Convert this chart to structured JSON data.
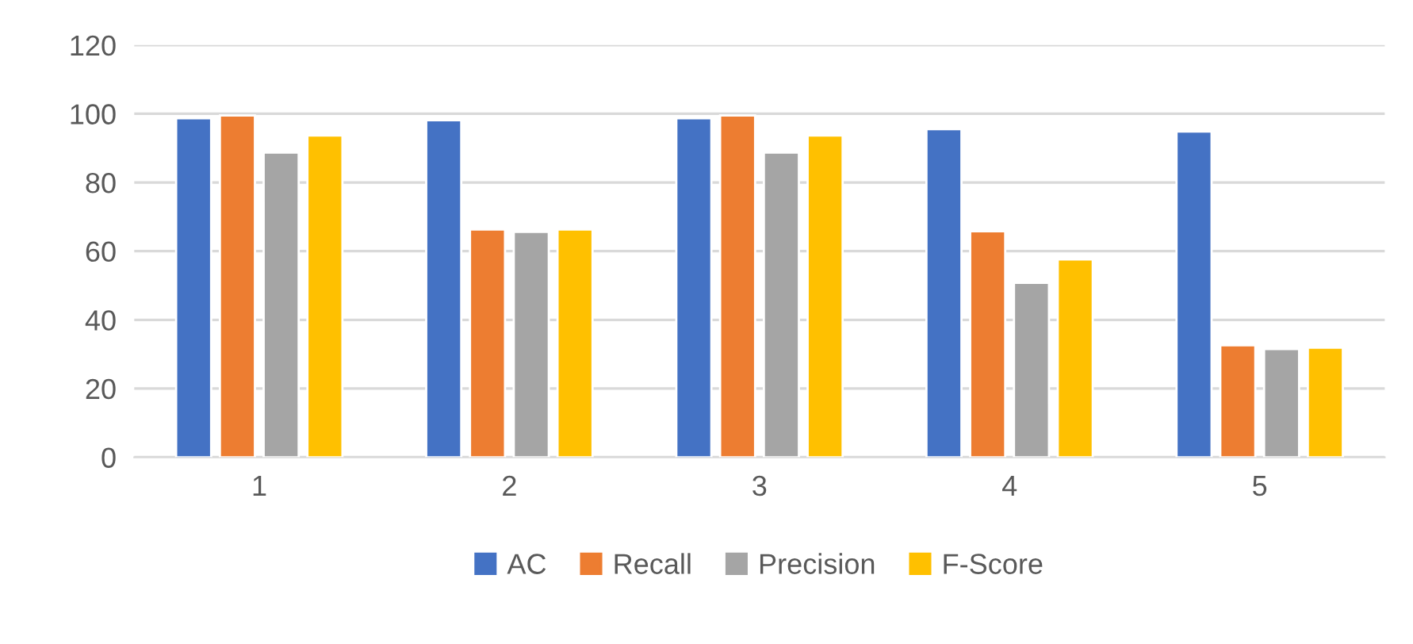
{
  "chart_data": {
    "type": "bar",
    "categories": [
      "1",
      "2",
      "3",
      "4",
      "5"
    ],
    "series": [
      {
        "name": "AC",
        "color": "#4472c4",
        "values": [
          98.7,
          98.1,
          98.7,
          95.5,
          94.8
        ]
      },
      {
        "name": "Recall",
        "color": "#ed7d31",
        "values": [
          99.5,
          66.3,
          99.5,
          65.8,
          32.6
        ]
      },
      {
        "name": "Precision",
        "color": "#a5a5a5",
        "values": [
          88.7,
          65.6,
          88.7,
          50.8,
          31.5
        ]
      },
      {
        "name": "F-Score",
        "color": "#ffc000",
        "values": [
          93.7,
          66.3,
          93.7,
          57.6,
          31.9
        ]
      }
    ],
    "ylim": [
      0,
      120
    ],
    "yticks": [
      0,
      20,
      40,
      60,
      80,
      100,
      120
    ],
    "grid": "y",
    "legend": "bottom"
  }
}
